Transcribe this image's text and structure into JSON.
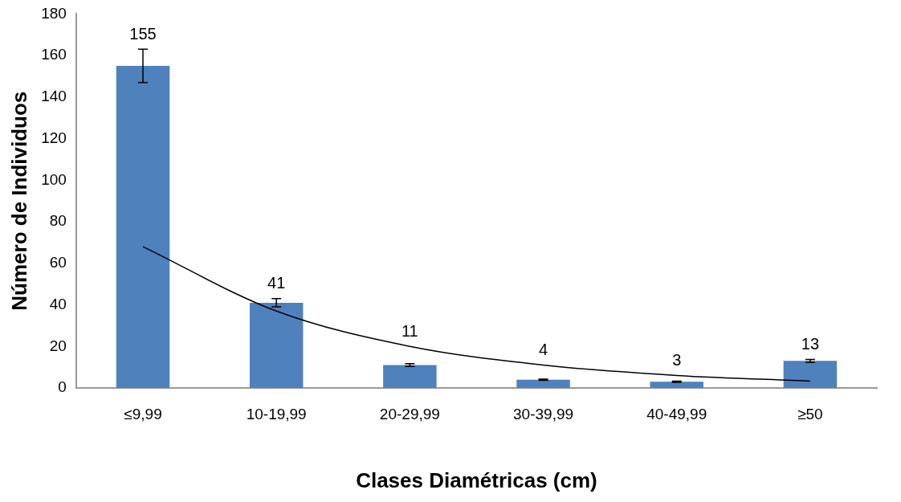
{
  "chart_data": {
    "type": "bar",
    "xlabel": "Clases Diamétricas (cm)",
    "ylabel": "Número de Individuos",
    "categories": [
      "≤9,99",
      "10-19,99",
      "20-29,99",
      "30-39,99",
      "40-49,99",
      "≥50"
    ],
    "series": [
      {
        "color": "#4f81bd",
        "values": [
          155,
          41,
          11,
          4,
          3,
          13
        ],
        "value_labels": [
          "155",
          "41",
          "11",
          "4",
          "3",
          "13"
        ],
        "errors": [
          8,
          2,
          0.7,
          0.3,
          0.3,
          0.7
        ]
      },
      {
        "type": "line",
        "color": "#000000",
        "x": [
          "≤9,99",
          "10-19,99",
          "20-29,99",
          "30-39,99",
          "40-49,99",
          "≥50"
        ],
        "values": [
          68,
          37,
          20,
          11,
          6,
          3.3
        ]
      }
    ],
    "ylim": [
      0,
      180
    ],
    "yticks": [
      0,
      20,
      40,
      60,
      80,
      100,
      120,
      140,
      160,
      180
    ],
    "grid": false,
    "legend": false,
    "marker": "none"
  }
}
